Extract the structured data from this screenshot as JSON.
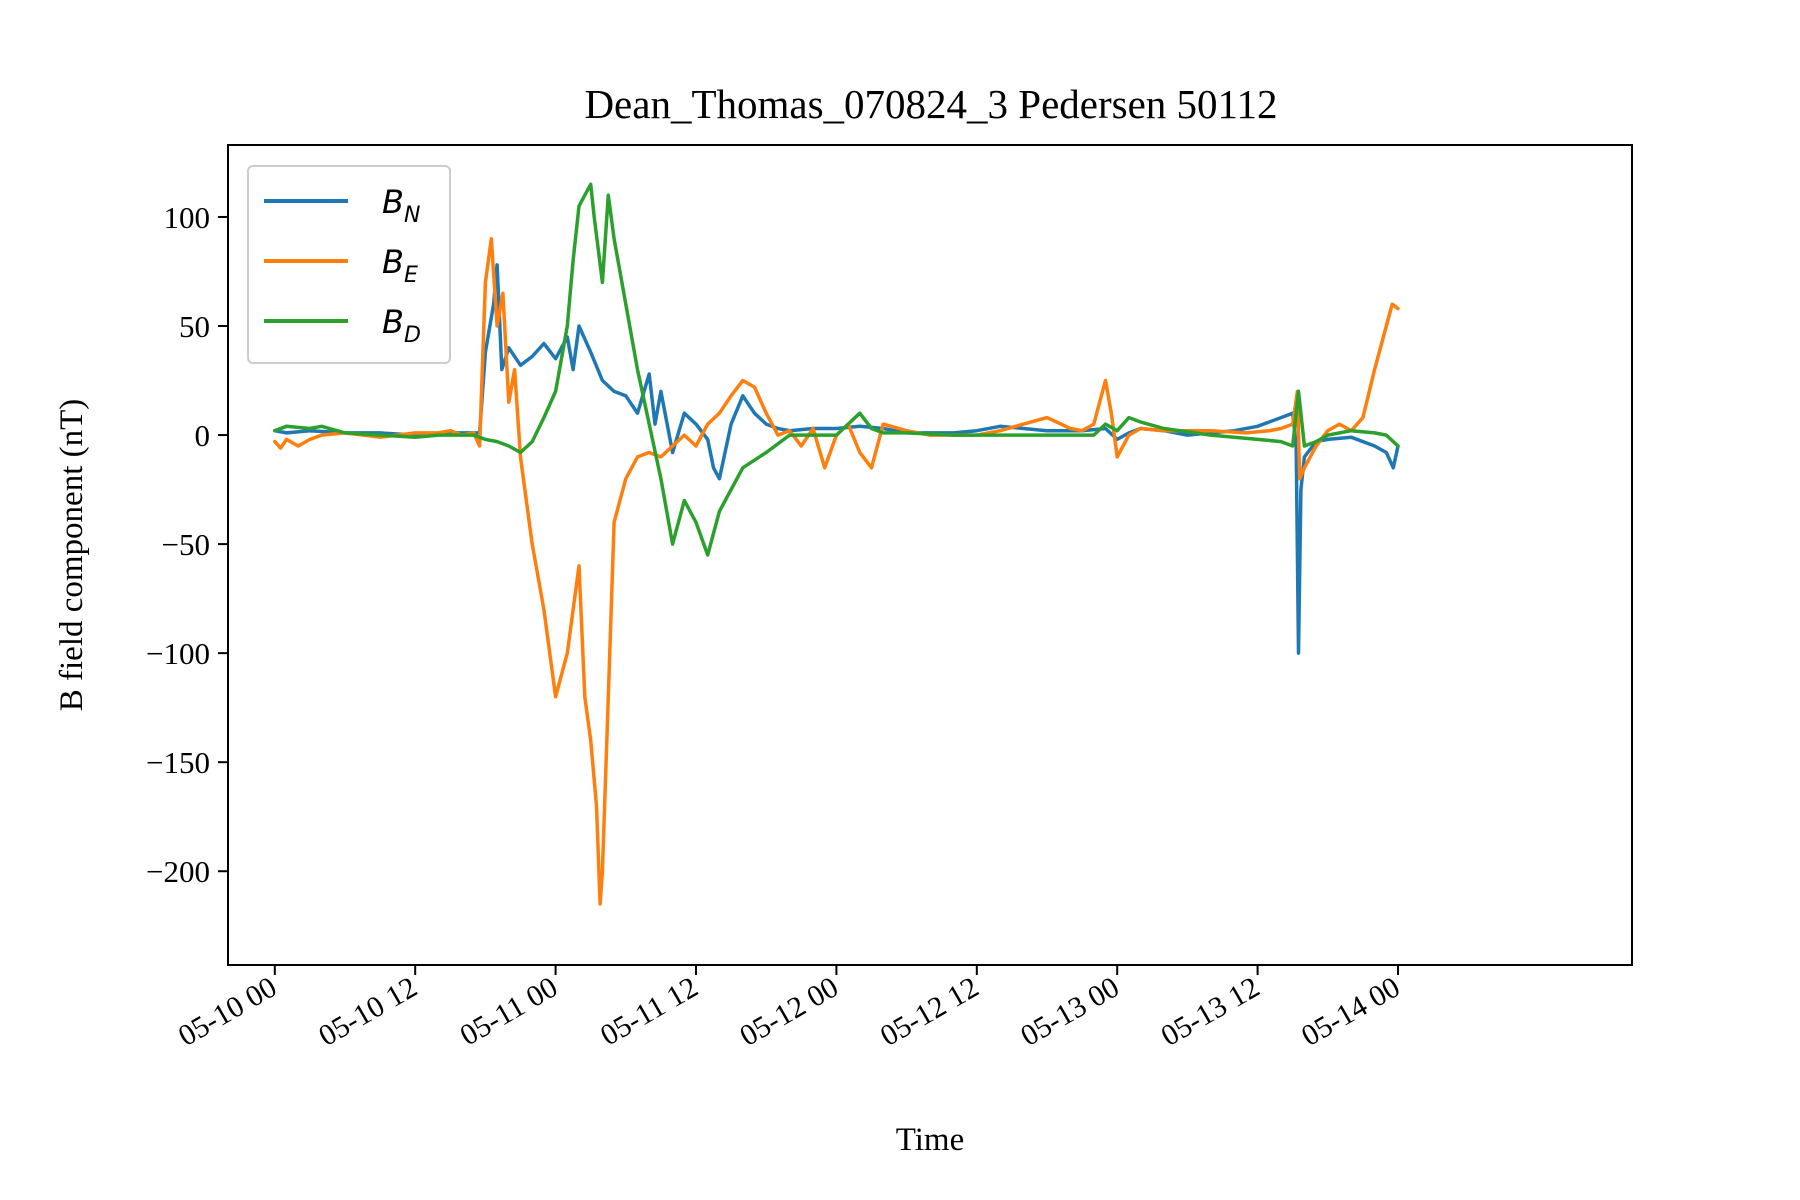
{
  "chart_data": {
    "type": "line",
    "title": "Dean_Thomas_070824_3 Pedersen 50112",
    "xlabel": "Time",
    "ylabel": "B field component (nT)",
    "x_unit": "hours from 05-10 00",
    "xlim": [
      -4,
      116
    ],
    "ylim": [
      -243,
      133
    ],
    "x_ticks": [
      0,
      12,
      24,
      36,
      48,
      60,
      72,
      84,
      96
    ],
    "x_tick_labels": [
      "05-10 00",
      "05-10 12",
      "05-11 00",
      "05-11 12",
      "05-12 00",
      "05-12 12",
      "05-13 00",
      "05-13 12",
      "05-14 00"
    ],
    "y_ticks": [
      100,
      50,
      0,
      -50,
      -100,
      -150,
      -200
    ],
    "y_tick_labels": [
      "100",
      "50",
      "0",
      "−50",
      "−100",
      "−150",
      "−200"
    ],
    "grid": false,
    "legend": {
      "position": "top-left"
    },
    "series": [
      {
        "name": "B",
        "sub": "N",
        "color": "#1f77b4",
        "points": [
          [
            0,
            2
          ],
          [
            1,
            1
          ],
          [
            3,
            2
          ],
          [
            6,
            1
          ],
          [
            9,
            1
          ],
          [
            12,
            0
          ],
          [
            15,
            1
          ],
          [
            17.5,
            1
          ],
          [
            18,
            38
          ],
          [
            18.7,
            60
          ],
          [
            19,
            78
          ],
          [
            19.4,
            30
          ],
          [
            20,
            40
          ],
          [
            21,
            32
          ],
          [
            22,
            36
          ],
          [
            23,
            42
          ],
          [
            24,
            35
          ],
          [
            25,
            45
          ],
          [
            25.5,
            30
          ],
          [
            26,
            50
          ],
          [
            27,
            38
          ],
          [
            28,
            25
          ],
          [
            29,
            20
          ],
          [
            30,
            18
          ],
          [
            31,
            10
          ],
          [
            32,
            28
          ],
          [
            32.5,
            5
          ],
          [
            33,
            20
          ],
          [
            34,
            -8
          ],
          [
            35,
            10
          ],
          [
            36,
            5
          ],
          [
            37,
            -2
          ],
          [
            37.5,
            -15
          ],
          [
            38,
            -20
          ],
          [
            39,
            5
          ],
          [
            40,
            18
          ],
          [
            41,
            10
          ],
          [
            42,
            5
          ],
          [
            43,
            3
          ],
          [
            44,
            2
          ],
          [
            46,
            3
          ],
          [
            48,
            3
          ],
          [
            50,
            4
          ],
          [
            52,
            3
          ],
          [
            54,
            1
          ],
          [
            56,
            1
          ],
          [
            58,
            1
          ],
          [
            60,
            2
          ],
          [
            62,
            4
          ],
          [
            64,
            3
          ],
          [
            66,
            2
          ],
          [
            69,
            2
          ],
          [
            71,
            3
          ],
          [
            72,
            -2
          ],
          [
            73,
            1
          ],
          [
            74,
            3
          ],
          [
            76,
            2
          ],
          [
            78,
            0
          ],
          [
            80,
            1
          ],
          [
            82,
            2
          ],
          [
            84,
            4
          ],
          [
            86,
            8
          ],
          [
            87,
            10
          ],
          [
            87.3,
            -5
          ],
          [
            87.5,
            -100
          ],
          [
            87.7,
            -25
          ],
          [
            88,
            -10
          ],
          [
            89,
            -3
          ],
          [
            90,
            -2
          ],
          [
            92,
            -1
          ],
          [
            94,
            -5
          ],
          [
            95,
            -8
          ],
          [
            95.6,
            -15
          ],
          [
            96,
            -5
          ]
        ]
      },
      {
        "name": "B",
        "sub": "E",
        "color": "#ff7f0e",
        "points": [
          [
            0,
            -3
          ],
          [
            0.5,
            -6
          ],
          [
            1,
            -2
          ],
          [
            2,
            -5
          ],
          [
            3,
            -2
          ],
          [
            4,
            0
          ],
          [
            6,
            1
          ],
          [
            9,
            -1
          ],
          [
            12,
            1
          ],
          [
            14,
            1
          ],
          [
            15,
            2
          ],
          [
            16,
            0
          ],
          [
            17,
            1
          ],
          [
            17.5,
            -5
          ],
          [
            18,
            70
          ],
          [
            18.5,
            90
          ],
          [
            19,
            50
          ],
          [
            19.5,
            65
          ],
          [
            20,
            15
          ],
          [
            20.5,
            30
          ],
          [
            21,
            -10
          ],
          [
            21.5,
            -30
          ],
          [
            22,
            -50
          ],
          [
            23,
            -80
          ],
          [
            24,
            -120
          ],
          [
            25,
            -100
          ],
          [
            26,
            -60
          ],
          [
            26.5,
            -120
          ],
          [
            27,
            -140
          ],
          [
            27.5,
            -170
          ],
          [
            27.8,
            -215
          ],
          [
            28,
            -200
          ],
          [
            28.5,
            -120
          ],
          [
            29,
            -40
          ],
          [
            30,
            -20
          ],
          [
            31,
            -10
          ],
          [
            32,
            -8
          ],
          [
            33,
            -10
          ],
          [
            34,
            -5
          ],
          [
            35,
            0
          ],
          [
            36,
            -5
          ],
          [
            37,
            5
          ],
          [
            38,
            10
          ],
          [
            39,
            18
          ],
          [
            40,
            25
          ],
          [
            41,
            22
          ],
          [
            42,
            10
          ],
          [
            43,
            0
          ],
          [
            44,
            2
          ],
          [
            45,
            -5
          ],
          [
            46,
            3
          ],
          [
            47,
            -15
          ],
          [
            48,
            0
          ],
          [
            49,
            5
          ],
          [
            50,
            -8
          ],
          [
            51,
            -15
          ],
          [
            52,
            5
          ],
          [
            54,
            2
          ],
          [
            56,
            0
          ],
          [
            60,
            0
          ],
          [
            62,
            2
          ],
          [
            64,
            5
          ],
          [
            66,
            8
          ],
          [
            68,
            3
          ],
          [
            69,
            2
          ],
          [
            70,
            5
          ],
          [
            71,
            25
          ],
          [
            71.5,
            10
          ],
          [
            72,
            -10
          ],
          [
            73,
            0
          ],
          [
            74,
            3
          ],
          [
            76,
            2
          ],
          [
            80,
            2
          ],
          [
            83,
            1
          ],
          [
            85,
            2
          ],
          [
            86,
            3
          ],
          [
            87,
            5
          ],
          [
            87.4,
            20
          ],
          [
            87.6,
            -20
          ],
          [
            88,
            -15
          ],
          [
            89,
            -5
          ],
          [
            90,
            2
          ],
          [
            91,
            5
          ],
          [
            92,
            2
          ],
          [
            93,
            8
          ],
          [
            94,
            30
          ],
          [
            95,
            50
          ],
          [
            95.5,
            60
          ],
          [
            96,
            58
          ]
        ]
      },
      {
        "name": "B",
        "sub": "D",
        "color": "#2ca02c",
        "points": [
          [
            0,
            2
          ],
          [
            1,
            4
          ],
          [
            3,
            3
          ],
          [
            4,
            4
          ],
          [
            6,
            1
          ],
          [
            9,
            0
          ],
          [
            12,
            -1
          ],
          [
            14,
            0
          ],
          [
            17,
            0
          ],
          [
            18,
            -2
          ],
          [
            19,
            -3
          ],
          [
            20,
            -5
          ],
          [
            21,
            -8
          ],
          [
            22,
            -3
          ],
          [
            23,
            8
          ],
          [
            24,
            20
          ],
          [
            25,
            50
          ],
          [
            25.5,
            80
          ],
          [
            26,
            105
          ],
          [
            26.5,
            110
          ],
          [
            27,
            115
          ],
          [
            27.3,
            100
          ],
          [
            28,
            70
          ],
          [
            28.5,
            110
          ],
          [
            29,
            90
          ],
          [
            30,
            60
          ],
          [
            31,
            30
          ],
          [
            32,
            5
          ],
          [
            33,
            -20
          ],
          [
            34,
            -50
          ],
          [
            35,
            -30
          ],
          [
            36,
            -40
          ],
          [
            37,
            -55
          ],
          [
            38,
            -35
          ],
          [
            39,
            -25
          ],
          [
            40,
            -15
          ],
          [
            42,
            -8
          ],
          [
            44,
            0
          ],
          [
            46,
            0
          ],
          [
            48,
            0
          ],
          [
            49,
            5
          ],
          [
            50,
            10
          ],
          [
            51,
            3
          ],
          [
            52,
            1
          ],
          [
            54,
            1
          ],
          [
            58,
            0
          ],
          [
            62,
            0
          ],
          [
            66,
            0
          ],
          [
            70,
            0
          ],
          [
            71,
            5
          ],
          [
            72,
            2
          ],
          [
            73,
            8
          ],
          [
            74,
            6
          ],
          [
            76,
            3
          ],
          [
            80,
            0
          ],
          [
            84,
            -2
          ],
          [
            86,
            -3
          ],
          [
            87,
            -5
          ],
          [
            87.5,
            20
          ],
          [
            88,
            -5
          ],
          [
            89,
            -3
          ],
          [
            90,
            0
          ],
          [
            92,
            2
          ],
          [
            94,
            1
          ],
          [
            95,
            0
          ],
          [
            96,
            -5
          ]
        ]
      }
    ]
  }
}
